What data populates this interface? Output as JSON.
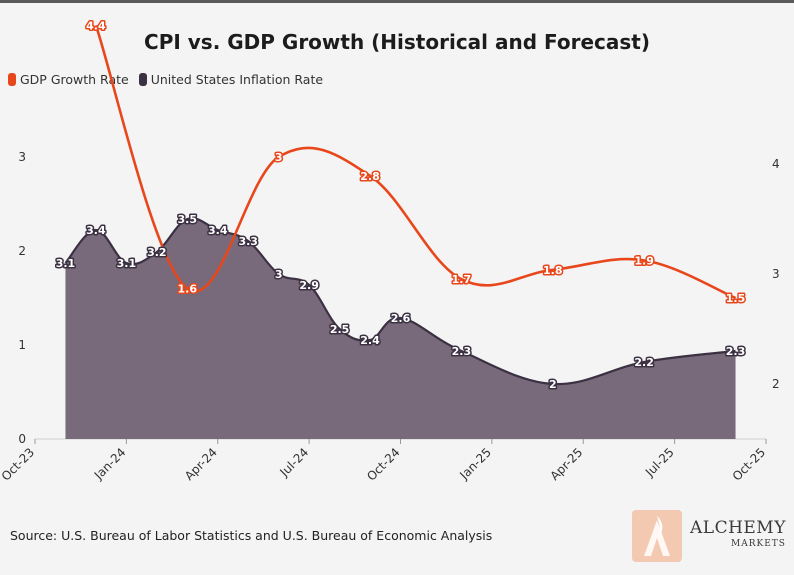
{
  "title": "CPI vs. GDP Growth (Historical and Forecast)",
  "legend": {
    "gdp": "GDP Growth Rate",
    "inflation": "United States Inflation Rate"
  },
  "source": "Source: U.S. Bureau of Labor Statistics and U.S. Bureau of Economic Analysis",
  "logo": {
    "main": "ALCHEMY",
    "sub": "MARKETS"
  },
  "colors": {
    "gdp": "#e8471c",
    "inflation_fill": "#786a7b",
    "inflation_line": "#3b3143",
    "background": "#f4f4f4"
  },
  "chart_data": {
    "type": "line",
    "title": "CPI vs. GDP Growth (Historical and Forecast)",
    "x_ticks": [
      "Oct-23",
      "Jan-24",
      "Apr-24",
      "Jul-24",
      "Oct-24",
      "Jan-25",
      "Apr-25",
      "Jul-25",
      "Oct-25"
    ],
    "y_left": {
      "ticks": [
        0,
        1,
        2,
        3
      ],
      "range": [
        0,
        3.5
      ]
    },
    "y_right": {
      "ticks": [
        2,
        3,
        4
      ],
      "range": [
        1.5,
        4.5
      ]
    },
    "series": [
      {
        "name": "United States Inflation Rate",
        "type": "area",
        "axis": "right",
        "x": [
          "Nov-23",
          "Dec-23",
          "Jan-24",
          "Feb-24",
          "Mar-24",
          "Apr-24",
          "May-24",
          "Jun-24",
          "Jul-24",
          "Aug-24",
          "Sep-24",
          "Oct-24",
          "Dec-24",
          "Mar-25",
          "Jun-25",
          "Sep-25"
        ],
        "values": [
          3.1,
          3.4,
          3.1,
          3.2,
          3.5,
          3.4,
          3.3,
          3.0,
          2.9,
          2.5,
          2.4,
          2.6,
          2.3,
          2.0,
          2.2,
          2.3
        ]
      },
      {
        "name": "GDP Growth Rate",
        "type": "line",
        "axis": "left",
        "x": [
          "Dec-23",
          "Mar-24",
          "Jun-24",
          "Sep-24",
          "Dec-24",
          "Mar-25",
          "Jun-25",
          "Sep-25"
        ],
        "values": [
          4.4,
          1.6,
          3.0,
          2.8,
          1.7,
          1.8,
          1.9,
          1.5
        ]
      }
    ]
  }
}
